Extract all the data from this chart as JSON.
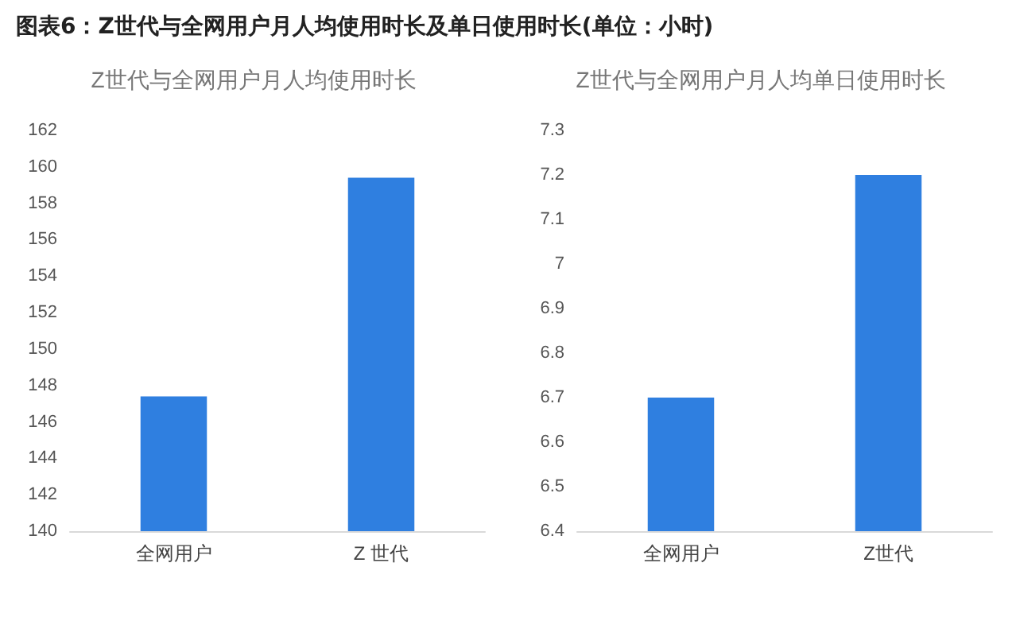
{
  "chart_data": [
    {
      "type": "bar",
      "title": "Z世代与全网用户月人均使用时长",
      "annotations": [
        "图表6：Z世代与全网用户月人均使用时长及单日使用时长(单位：小时)"
      ],
      "categories": [
        "全网用户",
        "Z 世代"
      ],
      "values": [
        147.4,
        159.4
      ],
      "color": "#2f7fe0",
      "ylim": [
        140,
        162
      ],
      "yticks": [
        140,
        142,
        144,
        146,
        148,
        150,
        152,
        154,
        156,
        158,
        160,
        162
      ],
      "grid": false
    },
    {
      "type": "bar",
      "title": "Z世代与全网用户月人均单日使用时长",
      "categories": [
        "全网用户",
        "Z世代"
      ],
      "values": [
        6.7,
        7.2
      ],
      "color": "#2f7fe0",
      "ylim": [
        6.4,
        7.3
      ],
      "yticks": [
        6.4,
        6.5,
        6.6,
        6.7,
        6.8,
        6.9,
        7,
        7.1,
        7.2,
        7.3
      ],
      "grid": false
    }
  ]
}
